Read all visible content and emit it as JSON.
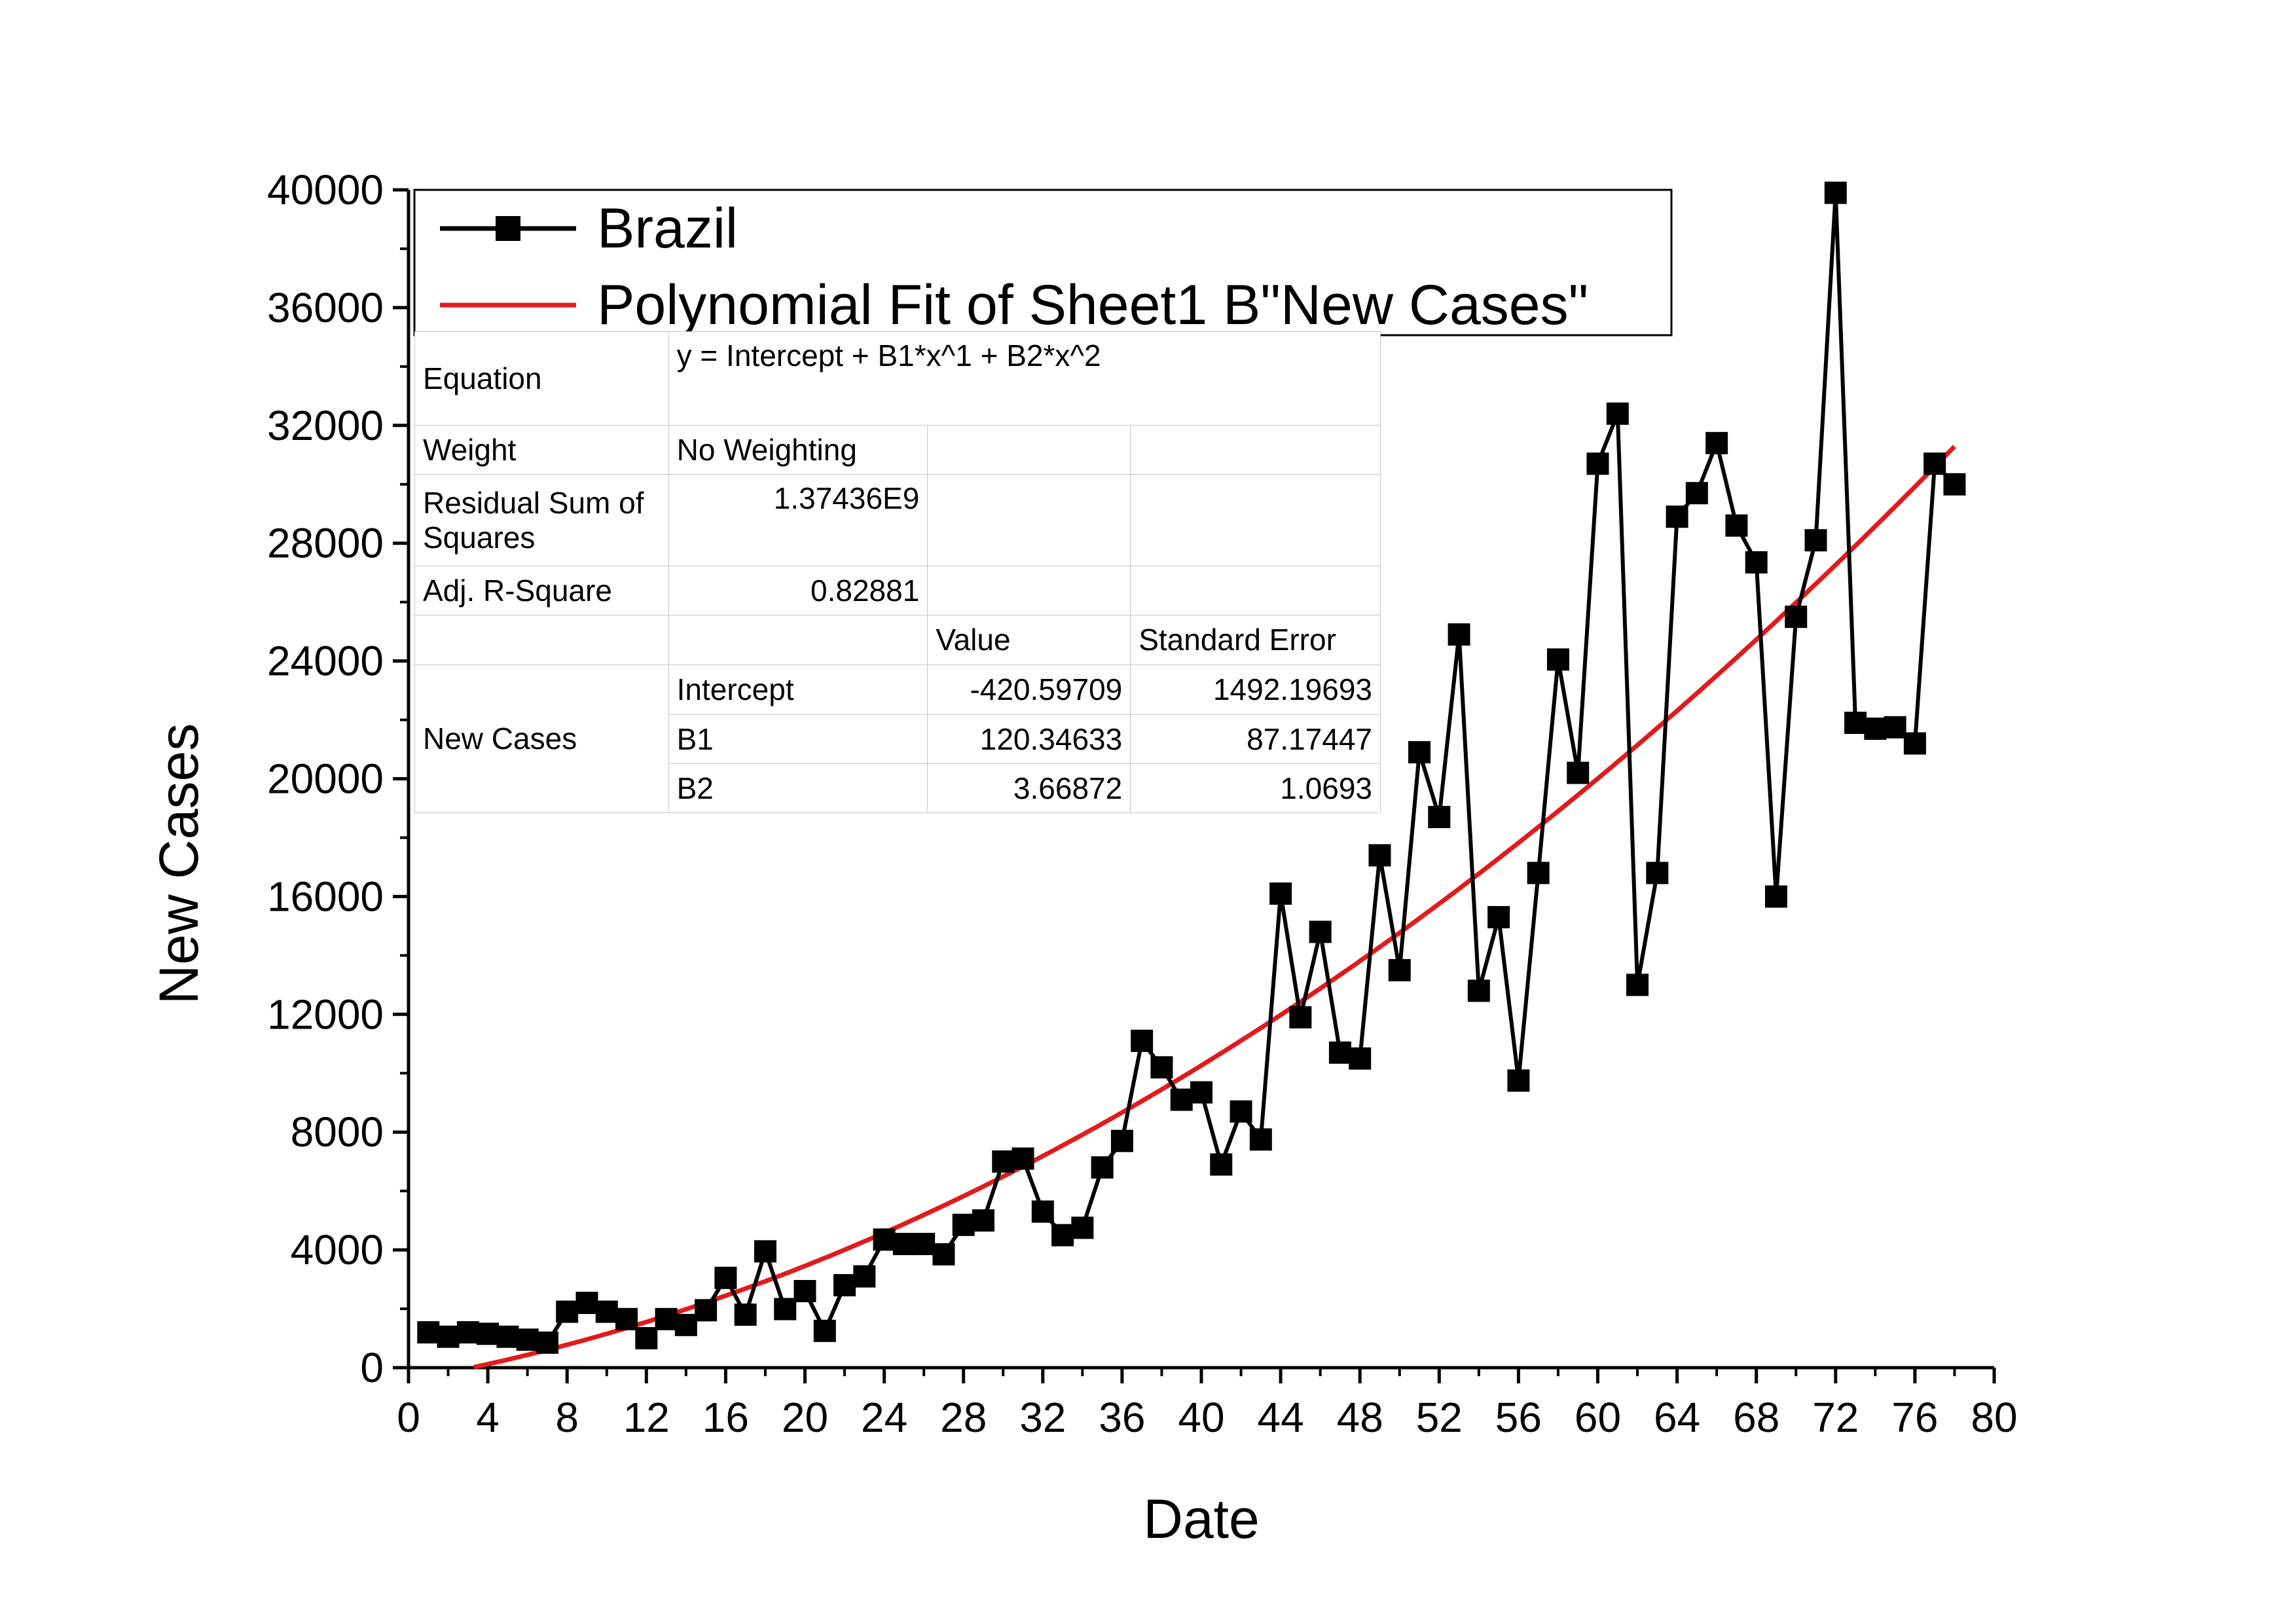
{
  "chart_data": {
    "type": "line",
    "xlabel": "Date",
    "ylabel": "New Cases",
    "xlim": [
      0,
      80
    ],
    "ylim": [
      0,
      40000
    ],
    "xticks": [
      0,
      4,
      8,
      12,
      16,
      20,
      24,
      28,
      32,
      36,
      40,
      44,
      48,
      52,
      56,
      60,
      64,
      68,
      72,
      76,
      80
    ],
    "yticks": [
      0,
      4000,
      8000,
      12000,
      16000,
      20000,
      24000,
      28000,
      32000,
      36000,
      40000
    ],
    "series": [
      {
        "name": "Brazil",
        "color": "#000000",
        "marker": "square",
        "x": [
          1,
          2,
          3,
          4,
          5,
          6,
          7,
          8,
          9,
          10,
          11,
          12,
          13,
          14,
          15,
          16,
          17,
          18,
          19,
          20,
          21,
          22,
          23,
          24,
          25,
          26,
          27,
          28,
          29,
          30,
          31,
          32,
          33,
          34,
          35,
          36,
          37,
          38,
          39,
          40,
          41,
          42,
          43,
          44,
          45,
          46,
          47,
          48,
          49,
          50,
          51,
          52,
          53,
          54,
          55,
          56,
          57,
          58,
          59,
          60,
          61,
          62,
          63,
          64,
          65,
          66,
          67,
          68,
          69,
          70,
          71,
          72,
          73,
          74,
          75,
          76,
          77,
          78
        ],
        "y": [
          1200,
          1050,
          1200,
          1150,
          1050,
          950,
          850,
          1900,
          2200,
          1900,
          1650,
          1000,
          1650,
          1450,
          1950,
          3050,
          1800,
          3950,
          1990,
          2600,
          1250,
          2800,
          3100,
          4350,
          4200,
          4200,
          3850,
          4850,
          5000,
          7000,
          7100,
          5300,
          4500,
          4750,
          6800,
          7700,
          11100,
          10200,
          9100,
          9350,
          6900,
          8700,
          7750,
          16100,
          11900,
          14800,
          10700,
          10500,
          17400,
          13500,
          20900,
          18700,
          24900,
          12800,
          15300,
          9750,
          16800,
          24050,
          20200,
          30700,
          32400,
          13000,
          16800,
          28900,
          29700,
          31400,
          28600,
          27350,
          16000,
          25500,
          28100,
          39900,
          21900,
          21700,
          21750,
          21200,
          30700,
          30000
        ]
      },
      {
        "name": "Polynomial Fit of Sheet1 B\"New Cases\"",
        "color": "#e31a1c",
        "fit": {
          "intercept": -420.59709,
          "b1": 120.34633,
          "b2": 3.66872,
          "x_from": 3.3,
          "x_to": 78
        }
      }
    ],
    "legend": {
      "position": "top-left",
      "entries": [
        "Brazil",
        "Polynomial Fit of Sheet1 B\"New Cases\""
      ]
    },
    "fit_table": {
      "equation_label": "Equation",
      "equation_value": "y = Intercept + B1*x^1 + B2*x^2",
      "weight_label": "Weight",
      "weight_value": "No Weighting",
      "rss_label": "Residual Sum of Squares",
      "rss_value": "1.37436E9",
      "adj_r2_label": "Adj. R-Square",
      "adj_r2_value": "0.82881",
      "col_value": "Value",
      "col_stderr": "Standard Error",
      "row_group": "New Cases",
      "rows": [
        {
          "name": "Intercept",
          "value": "-420.59709",
          "stderr": "1492.19693"
        },
        {
          "name": "B1",
          "value": "120.34633",
          "stderr": "87.17447"
        },
        {
          "name": "B2",
          "value": "3.66872",
          "stderr": "1.0693"
        }
      ]
    }
  }
}
